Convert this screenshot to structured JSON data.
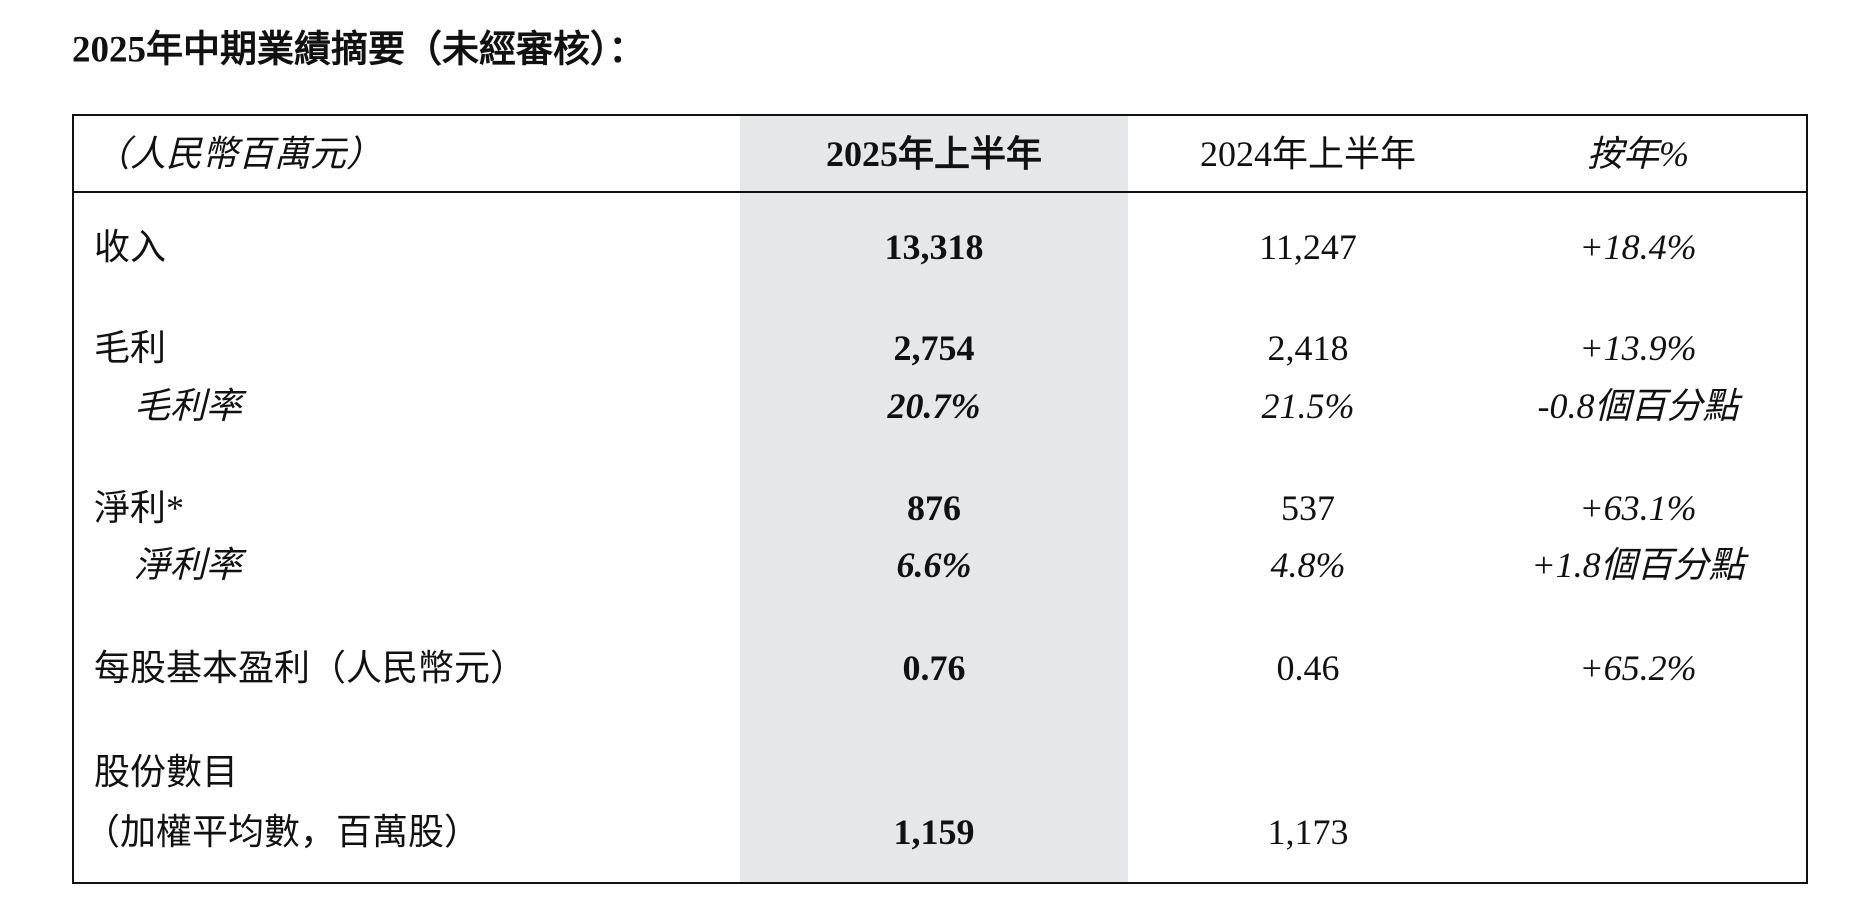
{
  "header": {
    "title": "2025年中期業績摘要（未經審核）："
  },
  "table": {
    "columns": [
      "（人民幣百萬元）",
      "2025年上半年",
      "2024年上半年",
      "按年%"
    ],
    "rows": [
      {
        "label": "收入",
        "values": [
          "13,318",
          "11,247",
          "+18.4%"
        ]
      },
      {
        "label": "毛利",
        "values": [
          "2,754",
          "2,418",
          "+13.9%"
        ]
      },
      {
        "label": "毛利率",
        "values": [
          "20.7%",
          "21.5%",
          "-0.8個百分點"
        ]
      },
      {
        "label": "淨利*",
        "values": [
          "876",
          "537",
          "+63.1%"
        ]
      },
      {
        "label": "淨利率",
        "values": [
          "6.6%",
          "4.8%",
          "+1.8個百分點"
        ]
      },
      {
        "label": "每股基本盈利（人民幣元）",
        "values": [
          "0.76",
          "0.46",
          "+65.2%"
        ]
      },
      {
        "label": "股份數目"
      },
      {
        "label": "（加權平均數，百萬股）",
        "values": [
          "1,159",
          "1,173"
        ]
      }
    ]
  }
}
